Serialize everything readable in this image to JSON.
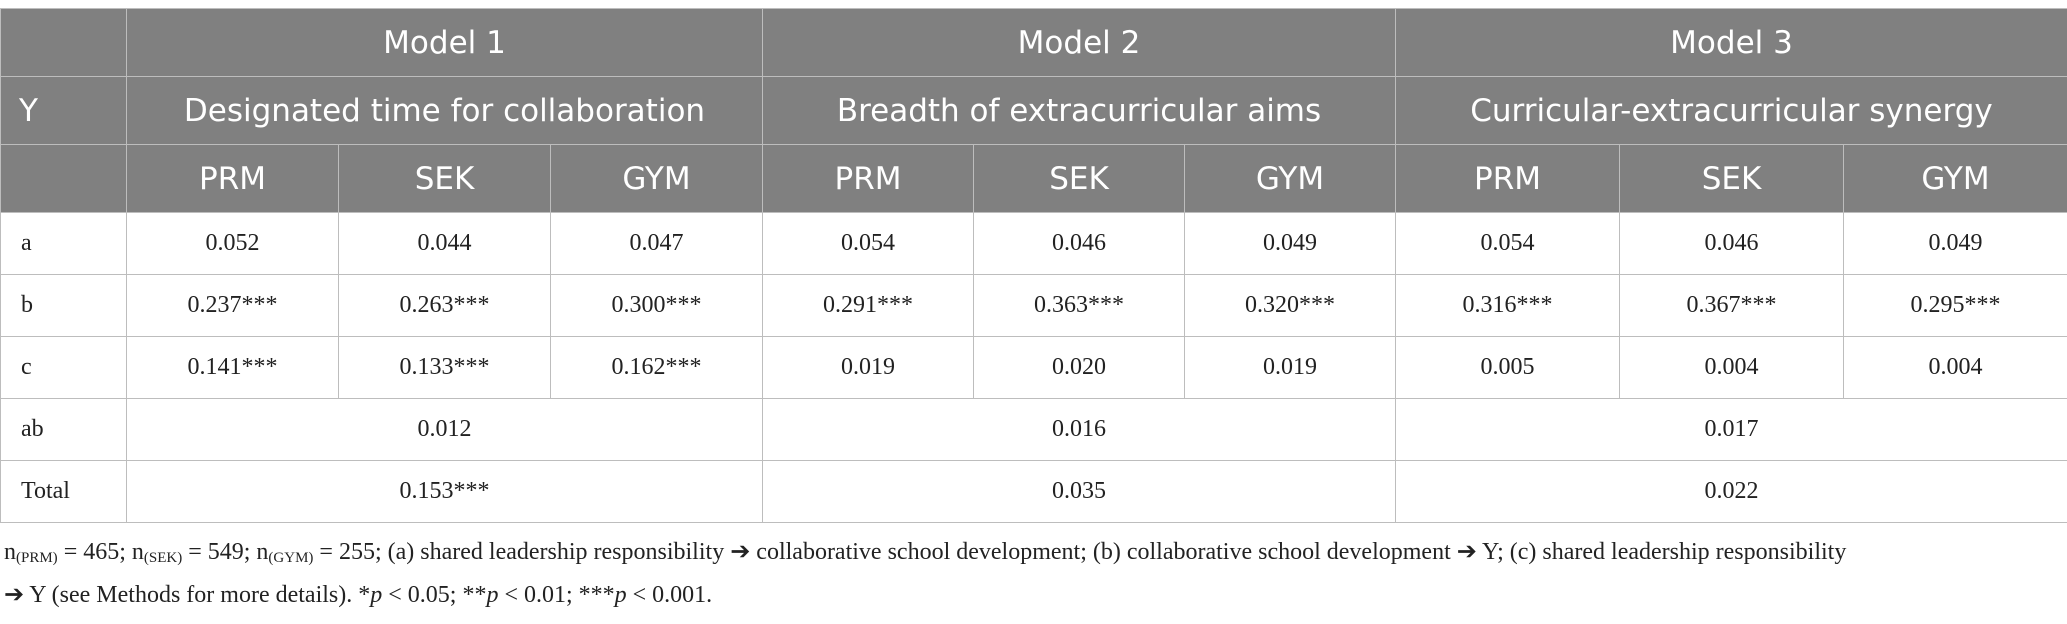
{
  "header": {
    "y_label": "Y",
    "models": [
      {
        "name": "Model 1",
        "outcome": "Designated time for collaboration",
        "groups": [
          "PRM",
          "SEK",
          "GYM"
        ]
      },
      {
        "name": "Model 2",
        "outcome": "Breadth of extracurricular aims",
        "groups": [
          "PRM",
          "SEK",
          "GYM"
        ]
      },
      {
        "name": "Model 3",
        "outcome": "Curricular-extracurricular synergy",
        "groups": [
          "PRM",
          "SEK",
          "GYM"
        ]
      }
    ]
  },
  "table": {
    "rows": [
      {
        "label": "a",
        "cells": [
          "0.052",
          "0.044",
          "0.047",
          "0.054",
          "0.046",
          "0.049",
          "0.054",
          "0.046",
          "0.049"
        ]
      },
      {
        "label": "b",
        "cells": [
          "0.237***",
          "0.263***",
          "0.300***",
          "0.291***",
          "0.363***",
          "0.320***",
          "0.316***",
          "0.367***",
          "0.295***"
        ]
      },
      {
        "label": "c",
        "cells": [
          "0.141***",
          "0.133***",
          "0.162***",
          "0.019",
          "0.020",
          "0.019",
          "0.005",
          "0.004",
          "0.004"
        ]
      },
      {
        "label": "ab",
        "cells": [
          "0.012",
          "0.016",
          "0.017"
        ]
      },
      {
        "label": "Total",
        "cells": [
          "0.153***",
          "0.035",
          "0.022"
        ]
      }
    ]
  },
  "footnote": [
    "n",
    "(PRM)",
    " = 465; n",
    "(SEK)",
    " = 549; n",
    "(GYM)",
    " = 255; (a) shared leadership responsibility ➔ collaborative school development; (b) collaborative school development ➔ Y; (c) shared leadership responsibility",
    "➔ Y (see Methods for more details). *",
    "p",
    " < 0.05; **",
    "p",
    " < 0.01; ***",
    "p",
    " < 0.001."
  ]
}
